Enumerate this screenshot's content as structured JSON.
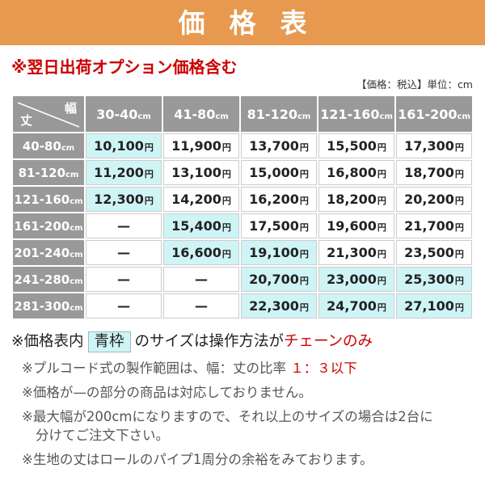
{
  "header": {
    "title": "価格表"
  },
  "notice": "※翌日出荷オプション価格含む",
  "unit_note": "【価格：税込】単位：cm",
  "colors": {
    "accent_orange": "#e6994f",
    "note_red": "#cc0000",
    "header_gray": "#999999",
    "highlight_cyan": "#cff4f6",
    "cell_border": "#cccccc"
  },
  "table": {
    "corner": {
      "top_label": "幅",
      "bottom_label": "丈"
    },
    "unit": "cm",
    "yen": "円",
    "empty": "—",
    "col_headers": [
      "30-40",
      "41-80",
      "81-120",
      "121-160",
      "161-200"
    ],
    "rows": [
      {
        "header": "40-80",
        "cells": [
          {
            "value": "10,100",
            "highlight": true
          },
          {
            "value": "11,900",
            "highlight": false
          },
          {
            "value": "13,700",
            "highlight": false
          },
          {
            "value": "15,500",
            "highlight": false
          },
          {
            "value": "17,300",
            "highlight": false
          }
        ]
      },
      {
        "header": "81-120",
        "cells": [
          {
            "value": "11,200",
            "highlight": true
          },
          {
            "value": "13,100",
            "highlight": false
          },
          {
            "value": "15,000",
            "highlight": false
          },
          {
            "value": "16,800",
            "highlight": false
          },
          {
            "value": "18,700",
            "highlight": false
          }
        ]
      },
      {
        "header": "121-160",
        "cells": [
          {
            "value": "12,300",
            "highlight": true
          },
          {
            "value": "14,200",
            "highlight": false
          },
          {
            "value": "16,200",
            "highlight": false
          },
          {
            "value": "18,200",
            "highlight": false
          },
          {
            "value": "20,200",
            "highlight": false
          }
        ]
      },
      {
        "header": "161-200",
        "cells": [
          {
            "value": "—",
            "highlight": false
          },
          {
            "value": "15,400",
            "highlight": true
          },
          {
            "value": "17,500",
            "highlight": false
          },
          {
            "value": "19,600",
            "highlight": false
          },
          {
            "value": "21,700",
            "highlight": false
          }
        ]
      },
      {
        "header": "201-240",
        "cells": [
          {
            "value": "—",
            "highlight": false
          },
          {
            "value": "16,600",
            "highlight": true
          },
          {
            "value": "19,100",
            "highlight": true
          },
          {
            "value": "21,300",
            "highlight": false
          },
          {
            "value": "23,500",
            "highlight": false
          }
        ]
      },
      {
        "header": "241-280",
        "cells": [
          {
            "value": "—",
            "highlight": false
          },
          {
            "value": "—",
            "highlight": false
          },
          {
            "value": "20,700",
            "highlight": true
          },
          {
            "value": "23,000",
            "highlight": true
          },
          {
            "value": "25,300",
            "highlight": true
          }
        ]
      },
      {
        "header": "281-300",
        "cells": [
          {
            "value": "—",
            "highlight": false
          },
          {
            "value": "—",
            "highlight": false
          },
          {
            "value": "22,300",
            "highlight": true
          },
          {
            "value": "24,700",
            "highlight": true
          },
          {
            "value": "27,100",
            "highlight": true
          }
        ]
      }
    ]
  },
  "notes": {
    "blue_frame": {
      "part1": "※価格表内",
      "badge": "青枠",
      "part2": "のサイズは操作方法が",
      "red": "チェーンのみ"
    },
    "pull_cord": {
      "part1": "※プルコード式の製作範囲は、幅：丈の比率 ",
      "red": "１：３以下"
    },
    "dash_note": "※価格が—の部分の商品は対応しておりません。",
    "max_width_line1": "※最大幅が200cmになりますので、それ以上のサイズの場合は2台に",
    "max_width_line2": "分けてご注文下さい。",
    "fabric_note": "※生地の丈はロールのパイプ1周分の余裕をみております。"
  }
}
